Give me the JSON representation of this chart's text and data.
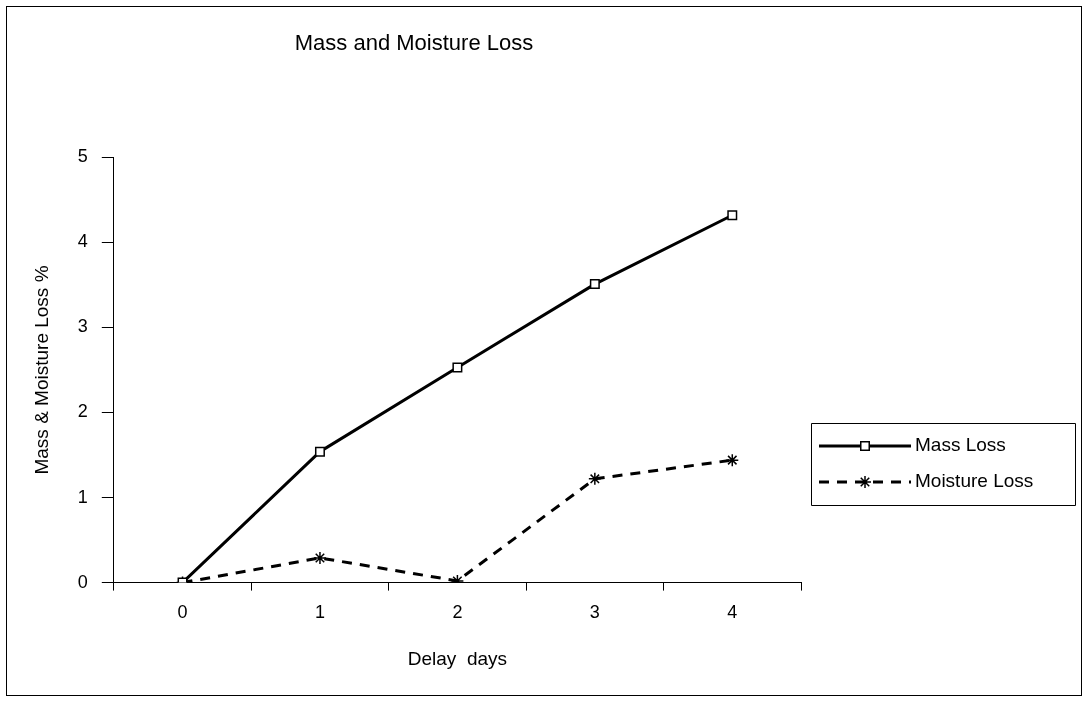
{
  "chart_data": {
    "type": "line",
    "title": "Mass and Moisture Loss",
    "xlabel": "Delay  days",
    "ylabel": "Mass & Moisture Loss %",
    "categories": [
      "0",
      "1",
      "2",
      "3",
      "4"
    ],
    "series": [
      {
        "name": "Mass Loss",
        "color": "#000000",
        "marker": "square",
        "line_style": "solid",
        "values": [
          0,
          1.54,
          2.53,
          3.51,
          4.32
        ]
      },
      {
        "name": "Moisture Loss",
        "color": "#000000",
        "marker": "cross",
        "line_style": "dashed",
        "values": [
          0,
          0.29,
          0.02,
          1.22,
          1.44
        ]
      }
    ],
    "ylim": [
      0,
      5
    ],
    "yticks": [
      0,
      1,
      2,
      3,
      4,
      5
    ],
    "grid": false,
    "legend": "right"
  }
}
